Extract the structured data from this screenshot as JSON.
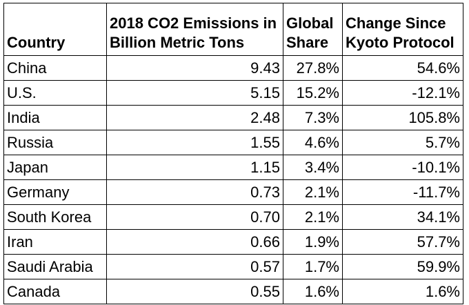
{
  "table": {
    "headers": [
      "Country",
      "2018 CO2 Emissions in Billion Metric Tons",
      "Global Share",
      "Change Since Kyoto Protocol"
    ],
    "rows": [
      {
        "country": "China",
        "emissions": "9.43",
        "share": "27.8%",
        "change": "54.6%"
      },
      {
        "country": "U.S.",
        "emissions": "5.15",
        "share": "15.2%",
        "change": "-12.1%"
      },
      {
        "country": "India",
        "emissions": "2.48",
        "share": "7.3%",
        "change": "105.8%"
      },
      {
        "country": "Russia",
        "emissions": "1.55",
        "share": "4.6%",
        "change": "5.7%"
      },
      {
        "country": "Japan",
        "emissions": "1.15",
        "share": "3.4%",
        "change": "-10.1%"
      },
      {
        "country": "Germany",
        "emissions": "0.73",
        "share": "2.1%",
        "change": "-11.7%"
      },
      {
        "country": "South Korea",
        "emissions": "0.70",
        "share": "2.1%",
        "change": "34.1%"
      },
      {
        "country": "Iran",
        "emissions": "0.66",
        "share": "1.9%",
        "change": "57.7%"
      },
      {
        "country": "Saudi Arabia",
        "emissions": "0.57",
        "share": "1.7%",
        "change": "59.9%"
      },
      {
        "country": "Canada",
        "emissions": "0.55",
        "share": "1.6%",
        "change": "1.6%"
      }
    ]
  }
}
